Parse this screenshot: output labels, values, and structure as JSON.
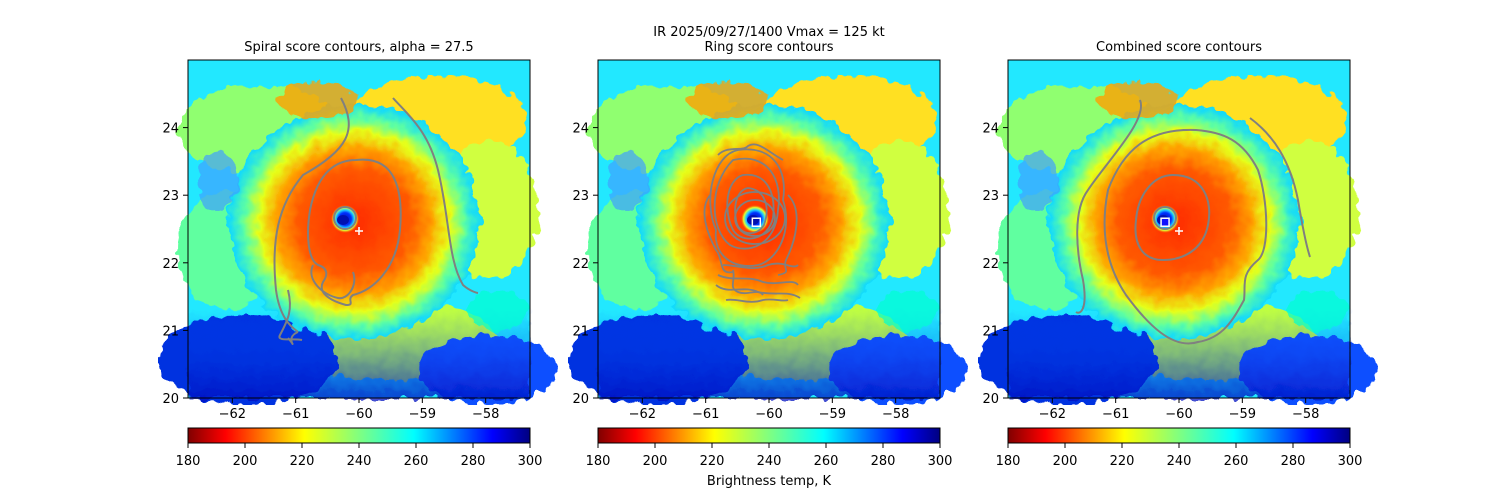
{
  "figure": {
    "suptitle_line1": "IR  2025/09/27/1400    Vmax = 125 kt",
    "colorbar_label": "Brightness temp, K"
  },
  "colors": {
    "contour": "#808080",
    "marker": "#ffffff",
    "center_marker_fill": "#1010ff"
  },
  "chart_data": [
    {
      "type": "heatmap",
      "title": "Spiral score contours, alpha = 27.5",
      "x_ticks": [
        -62,
        -61,
        -60,
        -59,
        -58
      ],
      "y_ticks": [
        20,
        21,
        22,
        23,
        24
      ],
      "xlim": [
        -62.7,
        -57.3
      ],
      "ylim": [
        20.0,
        25.0
      ],
      "storm_center": {
        "lon": -60.2,
        "lat": 22.6
      },
      "markers": [
        {
          "kind": "plus",
          "lon": -60.0,
          "lat": 22.47
        }
      ],
      "colorbar": {
        "cmap": "jet_r",
        "range": [
          180,
          300
        ],
        "ticks": [
          180,
          200,
          220,
          240,
          260,
          280,
          300
        ]
      }
    },
    {
      "type": "heatmap",
      "title": "Ring score contours",
      "x_ticks": [
        -62,
        -61,
        -60,
        -59,
        -58
      ],
      "y_ticks": [
        20,
        21,
        22,
        23,
        24
      ],
      "xlim": [
        -62.7,
        -57.3
      ],
      "ylim": [
        20.0,
        25.0
      ],
      "storm_center": {
        "lon": -60.2,
        "lat": 22.6
      },
      "markers": [
        {
          "kind": "square",
          "lon": -60.2,
          "lat": 22.6
        }
      ],
      "colorbar": {
        "cmap": "jet_r",
        "range": [
          180,
          300
        ],
        "ticks": [
          180,
          200,
          220,
          240,
          260,
          280,
          300
        ]
      }
    },
    {
      "type": "heatmap",
      "title": "Combined score contours",
      "x_ticks": [
        -62,
        -61,
        -60,
        -59,
        -58
      ],
      "y_ticks": [
        20,
        21,
        22,
        23,
        24
      ],
      "xlim": [
        -62.7,
        -57.3
      ],
      "ylim": [
        20.0,
        25.0
      ],
      "storm_center": {
        "lon": -60.2,
        "lat": 22.6
      },
      "markers": [
        {
          "kind": "square-filled",
          "lon": -60.22,
          "lat": 22.6
        },
        {
          "kind": "plus",
          "lon": -60.0,
          "lat": 22.47
        }
      ],
      "colorbar": {
        "cmap": "jet_r",
        "range": [
          180,
          300
        ],
        "ticks": [
          180,
          200,
          220,
          240,
          260,
          280,
          300
        ]
      }
    }
  ]
}
